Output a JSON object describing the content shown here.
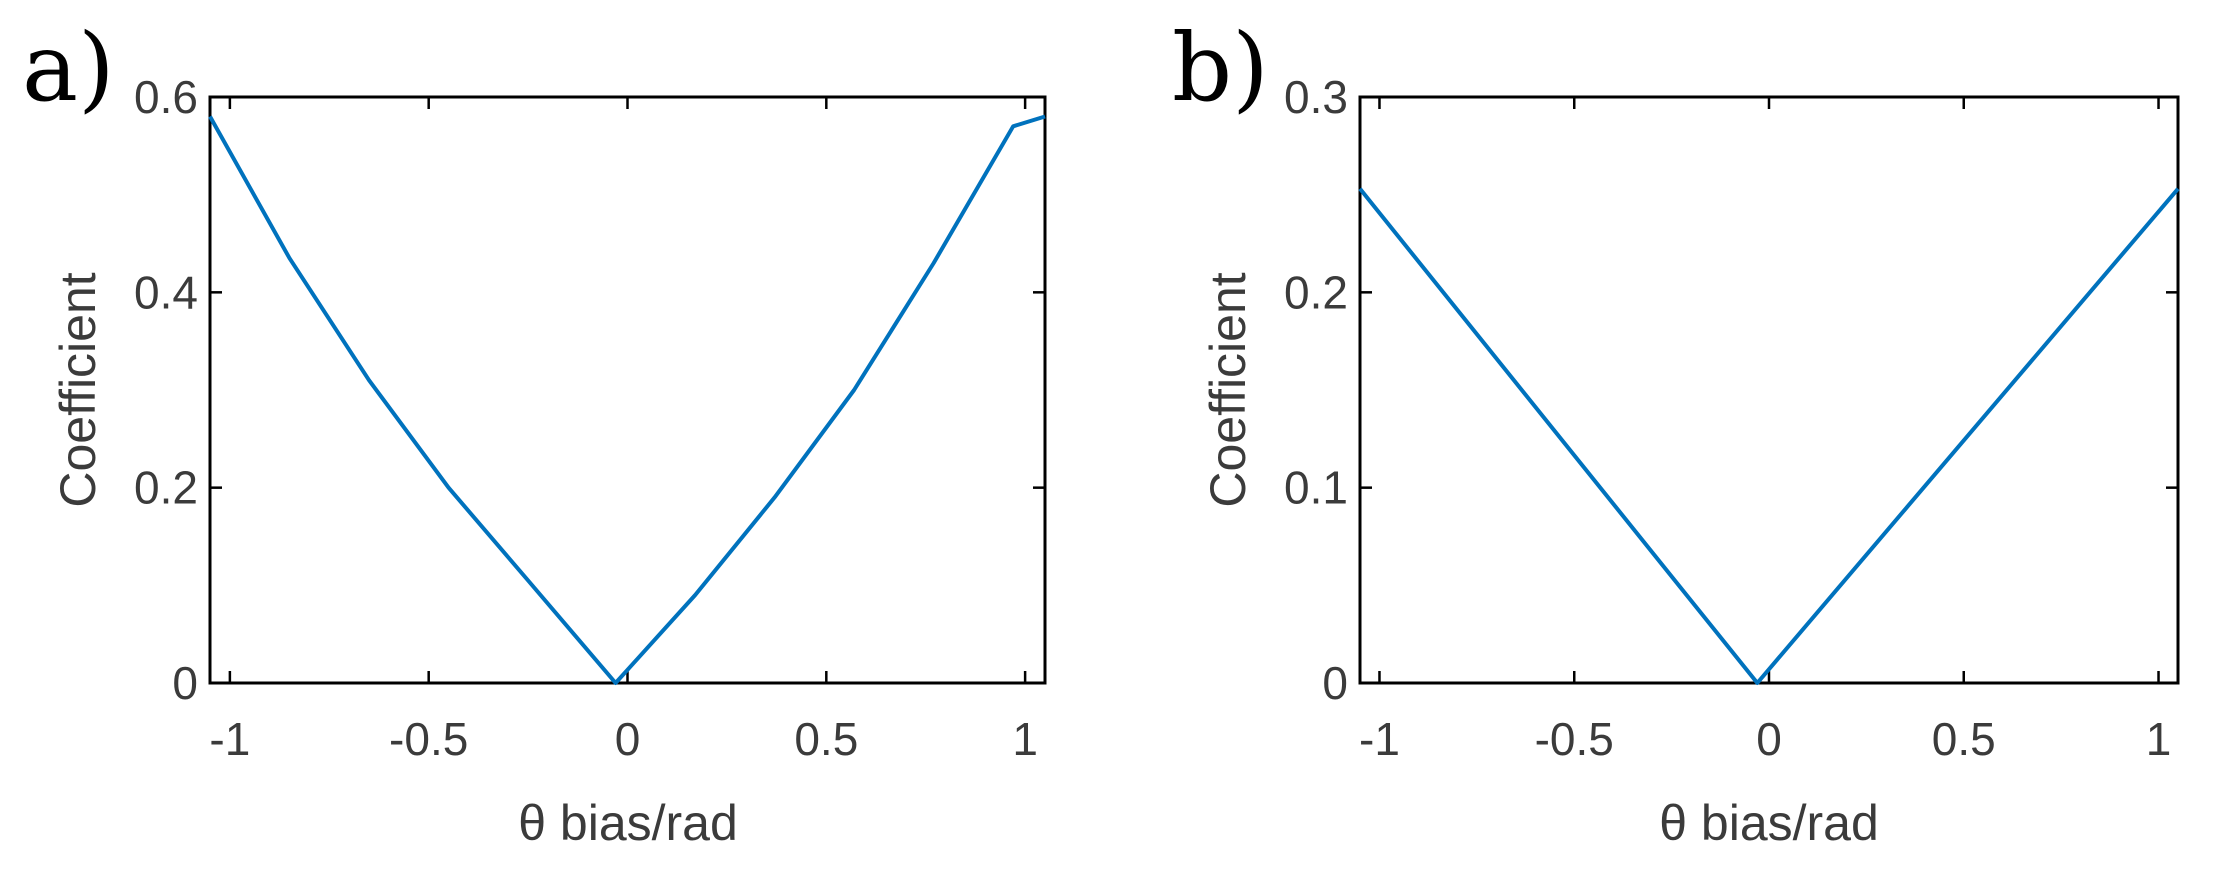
{
  "chart_data": [
    {
      "type": "line",
      "panel_label": "a)",
      "xlabel": "θ bias/rad",
      "ylabel": "Coefficient",
      "xlim": [
        -1.05,
        1.05
      ],
      "ylim": [
        0,
        0.6
      ],
      "xticks": [
        -1,
        -0.5,
        0,
        0.5,
        1
      ],
      "xtick_labels": [
        "-1",
        "-0.5",
        "0",
        "0.5",
        "1"
      ],
      "yticks": [
        0,
        0.2,
        0.4,
        0.6
      ],
      "ytick_labels": [
        "0",
        "0.2",
        "0.4",
        "0.6"
      ],
      "grid": false,
      "series": [
        {
          "color": "#0072bd",
          "x": [
            -1.05,
            -0.85,
            -0.65,
            -0.45,
            -0.25,
            -0.03,
            0.17,
            0.37,
            0.57,
            0.77,
            0.97,
            1.05
          ],
          "y": [
            0.58,
            0.435,
            0.31,
            0.2,
            0.105,
            0.0,
            0.09,
            0.19,
            0.3,
            0.43,
            0.57,
            0.58
          ]
        }
      ]
    },
    {
      "type": "line",
      "panel_label": "b)",
      "xlabel": "θ bias/rad",
      "ylabel": "Coefficient",
      "xlim": [
        -1.05,
        1.05
      ],
      "ylim": [
        0,
        0.3
      ],
      "xticks": [
        -1,
        -0.5,
        0,
        0.5,
        1
      ],
      "xtick_labels": [
        "-1",
        "-0.5",
        "0",
        "0.5",
        "1"
      ],
      "yticks": [
        0,
        0.1,
        0.2,
        0.3
      ],
      "ytick_labels": [
        "0",
        "0.1",
        "0.2",
        "0.3"
      ],
      "grid": false,
      "series": [
        {
          "color": "#0072bd",
          "x": [
            -1.05,
            -0.03,
            1.05
          ],
          "y": [
            0.253,
            0.0,
            0.253
          ]
        }
      ]
    }
  ]
}
